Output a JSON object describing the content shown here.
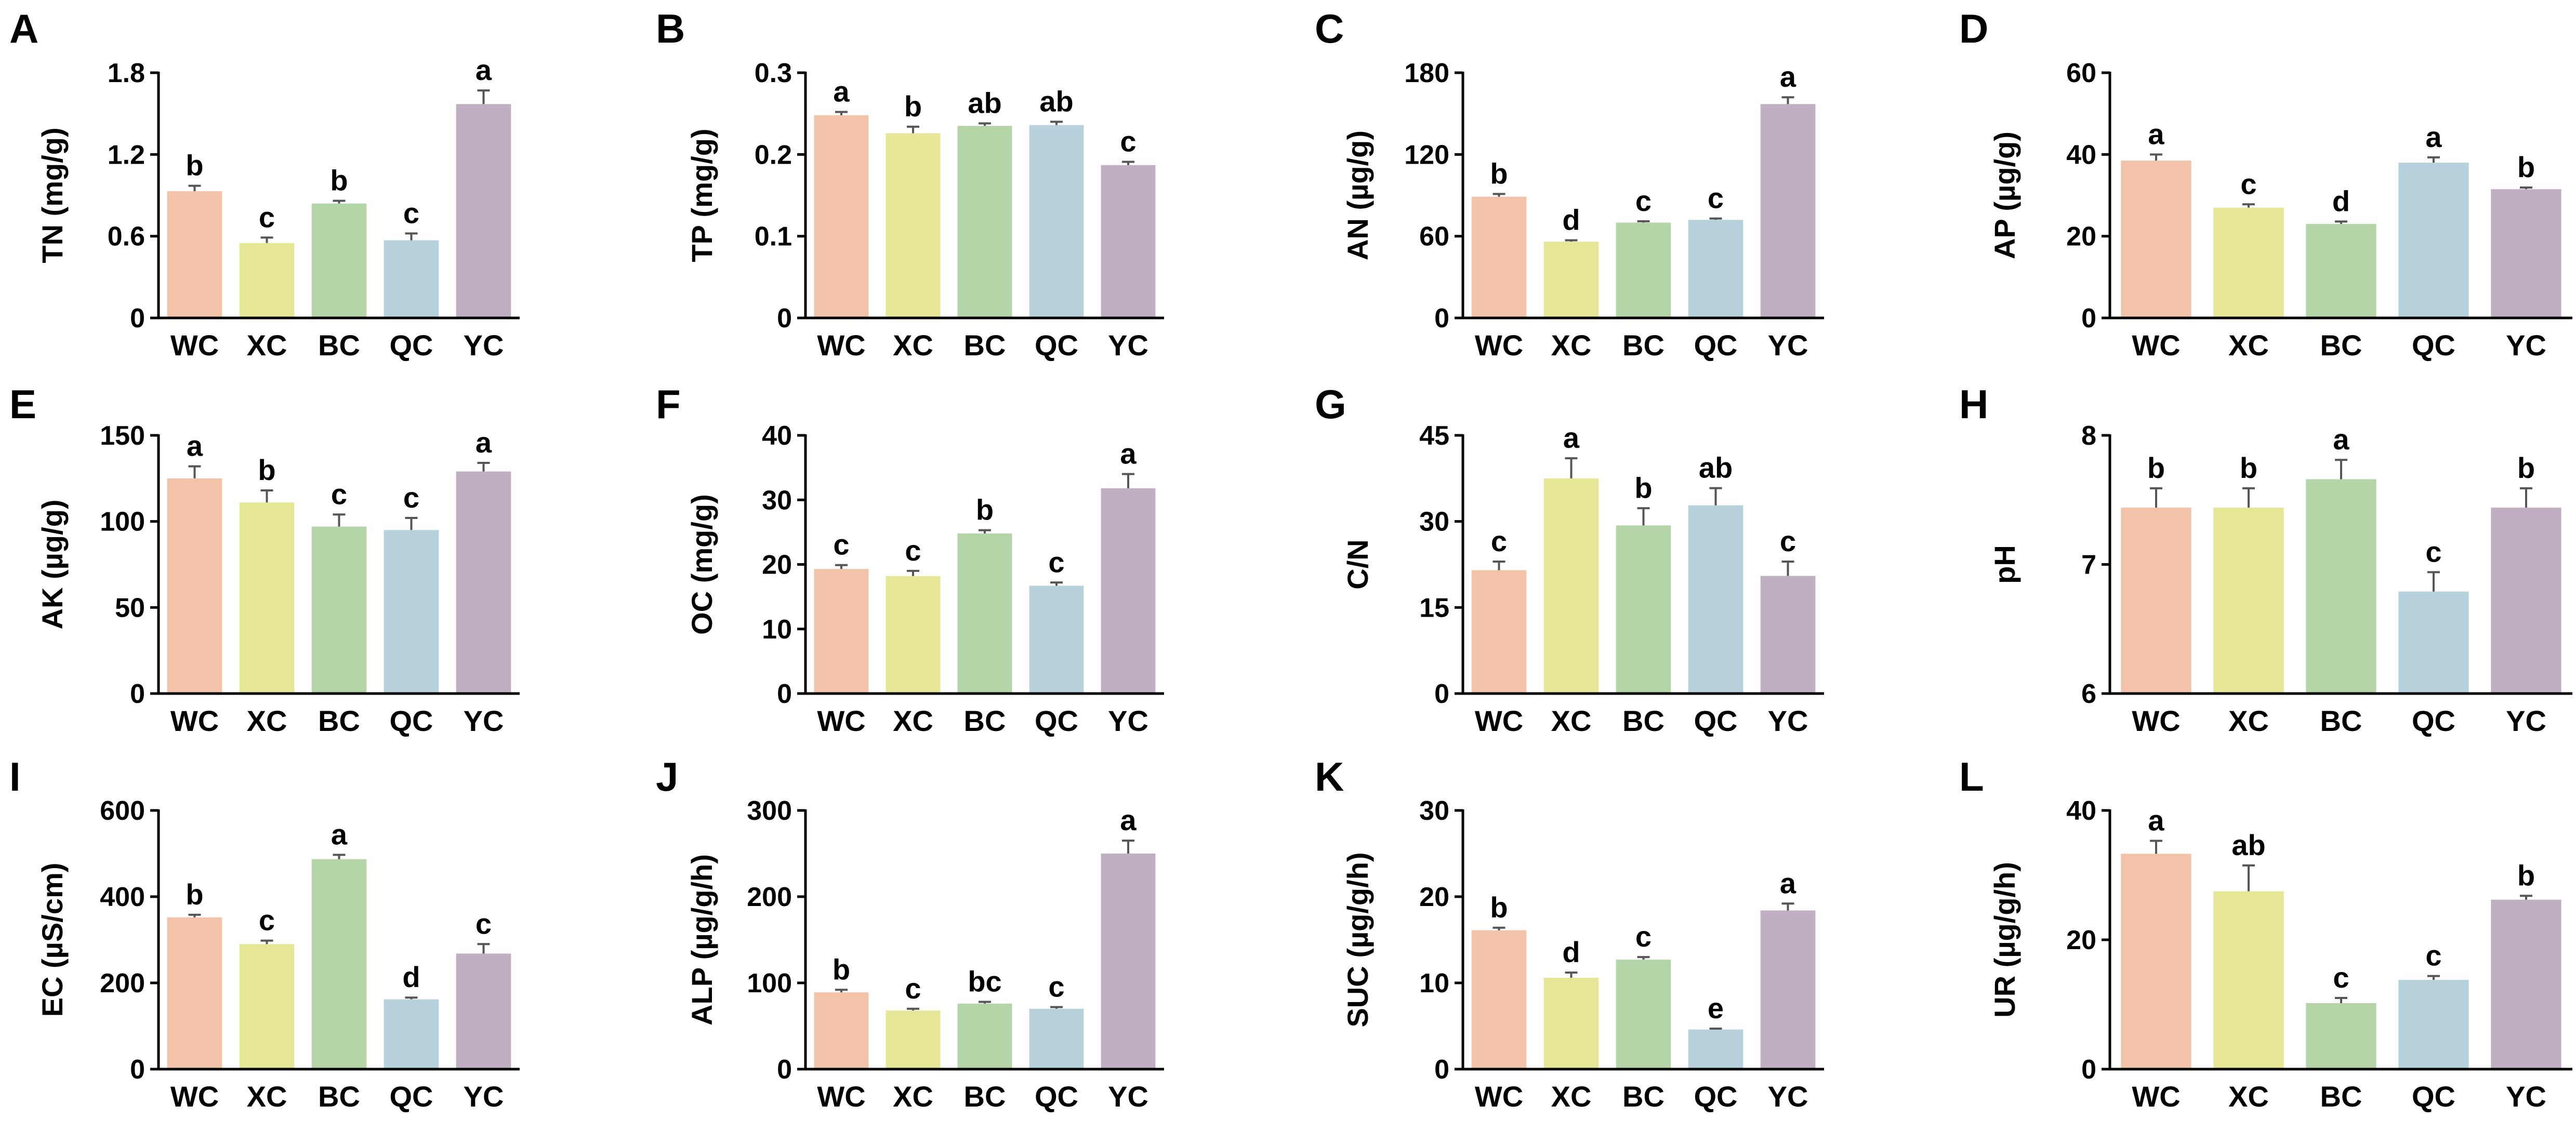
{
  "chart_data": [
    {
      "panel": "A",
      "type": "bar",
      "ylabel": "TN (mg/g)",
      "ylim": [
        0,
        1.8
      ],
      "yticks": [
        "0",
        "0.6",
        "1.2",
        "1.8"
      ],
      "categories": [
        "WC",
        "XC",
        "BC",
        "QC",
        "YC"
      ],
      "values": [
        0.93,
        0.55,
        0.84,
        0.57,
        1.57
      ],
      "errors": [
        0.04,
        0.04,
        0.02,
        0.05,
        0.1
      ],
      "letters": [
        "b",
        "c",
        "b",
        "c",
        "a"
      ]
    },
    {
      "panel": "B",
      "type": "bar",
      "ylabel": "TP (mg/g)",
      "ylim": [
        0,
        0.3
      ],
      "yticks": [
        "0",
        "0.1",
        "0.2",
        "0.3"
      ],
      "categories": [
        "WC",
        "XC",
        "BC",
        "QC",
        "YC"
      ],
      "values": [
        0.248,
        0.226,
        0.235,
        0.236,
        0.187
      ],
      "errors": [
        0.004,
        0.008,
        0.003,
        0.004,
        0.004
      ],
      "letters": [
        "a",
        "b",
        "ab",
        "ab",
        "c"
      ]
    },
    {
      "panel": "C",
      "type": "bar",
      "ylabel": "AN (µg/g)",
      "ylim": [
        0,
        180
      ],
      "yticks": [
        "0",
        "60",
        "120",
        "180"
      ],
      "categories": [
        "WC",
        "XC",
        "BC",
        "QC",
        "YC"
      ],
      "values": [
        89,
        56,
        70,
        72,
        157
      ],
      "errors": [
        2,
        1,
        1,
        1,
        5
      ],
      "letters": [
        "b",
        "d",
        "c",
        "c",
        "a"
      ]
    },
    {
      "panel": "D",
      "type": "bar",
      "ylabel": "AP (µg/g)",
      "ylim": [
        0,
        60
      ],
      "yticks": [
        "0",
        "20",
        "40",
        "60"
      ],
      "categories": [
        "WC",
        "XC",
        "BC",
        "QC",
        "YC"
      ],
      "values": [
        38.5,
        27,
        23,
        38,
        31.5
      ],
      "errors": [
        1.5,
        0.8,
        0.6,
        1.3,
        0.4
      ],
      "letters": [
        "a",
        "c",
        "d",
        "a",
        "b"
      ]
    },
    {
      "panel": "E",
      "type": "bar",
      "ylabel": "AK (µg/g)",
      "ylim": [
        0,
        150
      ],
      "yticks": [
        "0",
        "50",
        "100",
        "150"
      ],
      "categories": [
        "WC",
        "XC",
        "BC",
        "QC",
        "YC"
      ],
      "values": [
        125,
        111,
        97,
        95,
        129
      ],
      "errors": [
        7,
        7,
        7,
        7,
        5
      ],
      "letters": [
        "a",
        "b",
        "c",
        "c",
        "a"
      ]
    },
    {
      "panel": "F",
      "type": "bar",
      "ylabel": "OC (mg/g)",
      "ylim": [
        0,
        40
      ],
      "yticks": [
        "0",
        "10",
        "20",
        "30",
        "40"
      ],
      "categories": [
        "WC",
        "XC",
        "BC",
        "QC",
        "YC"
      ],
      "values": [
        19.3,
        18.2,
        24.8,
        16.7,
        31.8
      ],
      "errors": [
        0.6,
        0.8,
        0.5,
        0.5,
        2.2
      ],
      "letters": [
        "c",
        "c",
        "b",
        "c",
        "a"
      ]
    },
    {
      "panel": "G",
      "type": "bar",
      "ylabel": "C/N",
      "ylim": [
        0,
        45
      ],
      "yticks": [
        "0",
        "15",
        "30",
        "45"
      ],
      "categories": [
        "WC",
        "XC",
        "BC",
        "QC",
        "YC"
      ],
      "values": [
        21.5,
        37.5,
        29.3,
        32.8,
        20.5
      ],
      "errors": [
        1.5,
        3.5,
        3,
        3,
        2.5
      ],
      "letters": [
        "c",
        "a",
        "b",
        "ab",
        "c"
      ]
    },
    {
      "panel": "H",
      "type": "bar",
      "ylabel": "pH",
      "ylim": [
        6,
        8
      ],
      "yticks": [
        "6",
        "7",
        "8"
      ],
      "categories": [
        "WC",
        "XC",
        "BC",
        "QC",
        "YC"
      ],
      "values": [
        7.44,
        7.44,
        7.66,
        6.79,
        7.44
      ],
      "errors": [
        0.15,
        0.15,
        0.15,
        0.15,
        0.15
      ],
      "letters": [
        "b",
        "b",
        "a",
        "c",
        "b"
      ]
    },
    {
      "panel": "I",
      "type": "bar",
      "ylabel": "EC  (µS/cm)",
      "ylim": [
        0,
        600
      ],
      "yticks": [
        "0",
        "200",
        "400",
        "600"
      ],
      "categories": [
        "WC",
        "XC",
        "BC",
        "QC",
        "YC"
      ],
      "values": [
        352,
        290,
        487,
        162,
        268
      ],
      "errors": [
        6,
        8,
        10,
        4,
        22
      ],
      "letters": [
        "b",
        "c",
        "a",
        "d",
        "c"
      ]
    },
    {
      "panel": "J",
      "type": "bar",
      "ylabel": "ALP (µg/g/h)",
      "ylim": [
        0,
        300
      ],
      "yticks": [
        "0",
        "100",
        "200",
        "300"
      ],
      "categories": [
        "WC",
        "XC",
        "BC",
        "QC",
        "YC"
      ],
      "values": [
        89,
        68,
        76,
        70,
        250
      ],
      "errors": [
        3,
        2,
        2,
        2,
        15
      ],
      "letters": [
        "b",
        "c",
        "bc",
        "c",
        "a"
      ]
    },
    {
      "panel": "K",
      "type": "bar",
      "ylabel": "SUC (µg/g/h)",
      "ylim": [
        0,
        30
      ],
      "yticks": [
        "0",
        "10",
        "20",
        "30"
      ],
      "categories": [
        "WC",
        "XC",
        "BC",
        "QC",
        "YC"
      ],
      "values": [
        16.1,
        10.6,
        12.7,
        4.6,
        18.4
      ],
      "errors": [
        0.3,
        0.6,
        0.3,
        0.1,
        0.8
      ],
      "letters": [
        "b",
        "d",
        "c",
        "e",
        "a"
      ]
    },
    {
      "panel": "L",
      "type": "bar",
      "ylabel": "UR (µg/g/h)",
      "ylim": [
        0,
        40
      ],
      "yticks": [
        "0",
        "20",
        "40"
      ],
      "categories": [
        "WC",
        "XC",
        "BC",
        "QC",
        "YC"
      ],
      "values": [
        33.3,
        27.5,
        10.2,
        13.8,
        26.2
      ],
      "errors": [
        2,
        4,
        0.8,
        0.6,
        0.6
      ],
      "letters": [
        "a",
        "ab",
        "c",
        "c",
        "b"
      ]
    }
  ],
  "colors": [
    "#f2c3a8",
    "#e6e697",
    "#b3d5a7",
    "#b8d2dd",
    "#c0aec3"
  ],
  "error_color": "#555555"
}
